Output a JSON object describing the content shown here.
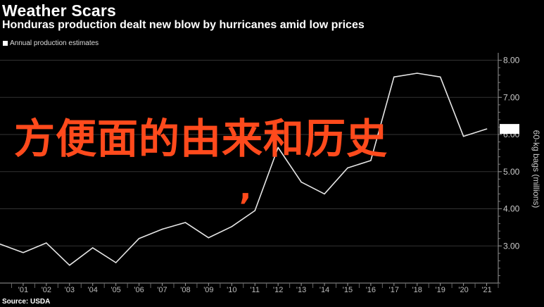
{
  "header": {
    "title": "Weather Scars",
    "subtitle": "Honduras production dealt new blow by hurricanes amid low prices"
  },
  "legend": {
    "label": "Annual production estimates"
  },
  "footer": {
    "source": "Source: USDA"
  },
  "overlay": {
    "text": "方便面的由来和历史",
    "comma": ","
  },
  "colors": {
    "background": "#000000",
    "line": "#e6e6e6",
    "overlay": "#ff4a1c",
    "grid": "#333333"
  },
  "chart_data": {
    "type": "line",
    "title": "Weather Scars",
    "subtitle": "Honduras production dealt new blow by hurricanes amid low prices",
    "ylabel": "60-kg bags (millions)",
    "xlabel": "",
    "x_ticks": [
      "'01",
      "'02",
      "'03",
      "'04",
      "'05",
      "'06",
      "'07",
      "'08",
      "'09",
      "'10",
      "'11",
      "'12",
      "'13",
      "'14",
      "'15",
      "'16",
      "'17",
      "'18",
      "'19",
      "'20",
      "'21"
    ],
    "y_ticks": [
      "3.00",
      "4.00",
      "5.00",
      "6.00",
      "7.00",
      "8.00"
    ],
    "ylim": [
      2.0,
      8.2
    ],
    "xlim": [
      2000,
      2021.5
    ],
    "series": [
      {
        "name": "Annual production estimates",
        "x": [
          2000,
          2001,
          2002,
          2003,
          2004,
          2005,
          2006,
          2007,
          2008,
          2009,
          2010,
          2011,
          2012,
          2013,
          2014,
          2015,
          2016,
          2017,
          2018,
          2019,
          2020,
          2021
        ],
        "values": [
          3.05,
          2.82,
          3.08,
          2.48,
          2.95,
          2.55,
          3.2,
          3.45,
          3.63,
          3.22,
          3.52,
          3.95,
          5.65,
          4.72,
          4.4,
          5.1,
          5.3,
          7.55,
          7.65,
          7.55,
          5.95,
          6.15
        ]
      }
    ],
    "grid": true,
    "legend_position": "top-left"
  }
}
